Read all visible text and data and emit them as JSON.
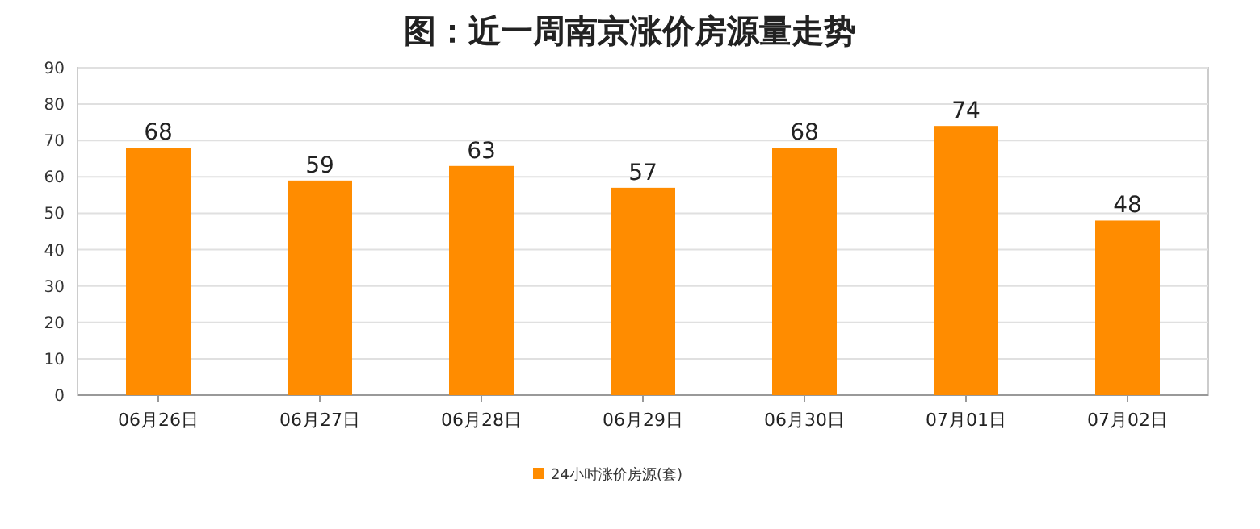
{
  "chart_data": {
    "type": "bar",
    "title": "图：近一周南京涨价房源量走势",
    "categories": [
      "06月26日",
      "06月27日",
      "06月28日",
      "06月29日",
      "06月30日",
      "07月01日",
      "07月02日"
    ],
    "series": [
      {
        "name": "24小时涨价房源(套)",
        "color": "#ff8c00",
        "values": [
          68,
          59,
          63,
          57,
          68,
          74,
          48
        ]
      }
    ],
    "ylim": [
      0,
      90
    ],
    "yticks": [
      0,
      10,
      20,
      30,
      40,
      50,
      60,
      70,
      80,
      90
    ],
    "grid": "y",
    "legend": "bottom",
    "data_labels": true
  }
}
